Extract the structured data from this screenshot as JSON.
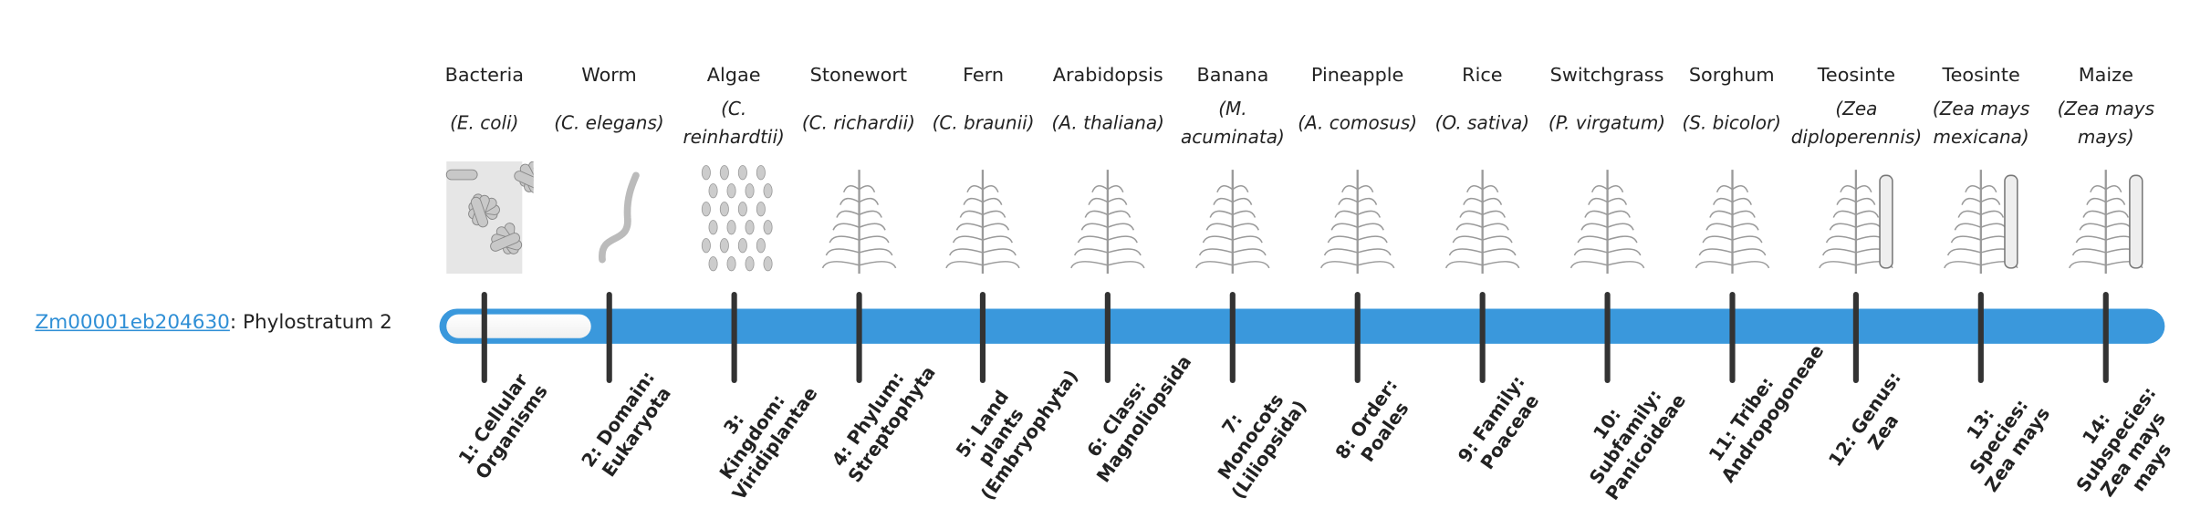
{
  "gene": {
    "id": "Zm00001eb204630",
    "label": ": Phylostratum 2"
  },
  "progress": {
    "phylostratum": 2,
    "total": 14,
    "fill_color": "#ffffff",
    "bar_color": "#3a98dc"
  },
  "organisms": [
    {
      "common": "Bacteria",
      "scientific": "(E. coli)",
      "image": "bacteria-illustration"
    },
    {
      "common": "Worm",
      "scientific": "(C. elegans)",
      "image": "worm-illustration"
    },
    {
      "common": "Algae",
      "scientific": "(C. reinhardtii)",
      "image": "algae-illustration"
    },
    {
      "common": "Stonewort",
      "scientific": "(C. richardii)",
      "image": "stonewort-illustration"
    },
    {
      "common": "Fern",
      "scientific": "(C. braunii)",
      "image": "fern-illustration"
    },
    {
      "common": "Arabidopsis",
      "scientific": "(A. thaliana)",
      "image": "arabidopsis-illustration"
    },
    {
      "common": "Banana",
      "scientific": "(M. acuminata)",
      "image": "banana-illustration"
    },
    {
      "common": "Pineapple",
      "scientific": "(A. comosus)",
      "image": "pineapple-illustration"
    },
    {
      "common": "Rice",
      "scientific": "(O. sativa)",
      "image": "rice-illustration"
    },
    {
      "common": "Switchgrass",
      "scientific": "(P. virgatum)",
      "image": "switchgrass-illustration"
    },
    {
      "common": "Sorghum",
      "scientific": "(S. bicolor)",
      "image": "sorghum-illustration"
    },
    {
      "common": "Teosinte",
      "scientific": "(Zea diploperennis)",
      "image": "teosinte-illustration"
    },
    {
      "common": "Teosinte",
      "scientific": "(Zea mays mexicana)",
      "image": "teosinte-mexicana-illustration"
    },
    {
      "common": "Maize",
      "scientific": "(Zea mays mays)",
      "image": "maize-illustration"
    }
  ],
  "levels": [
    "1: Cellular Organisms",
    "2: Domain: Eukaryota",
    "3: Kingdom: Viridiplantae",
    "4: Phylum: Streptophyta",
    "5: Land plants (Embryophyta)",
    "6: Class: Magnoliopsida",
    "7: Monocots (Liliopsida)",
    "8: Order: Poales",
    "9: Family: Poaceae",
    "10: Subfamily: Panicoideae",
    "11: Tribe: Andropogoneae",
    "12: Genus: Zea",
    "13: Species: Zea mays",
    "14: Subspecies: Zea mays mays"
  ]
}
